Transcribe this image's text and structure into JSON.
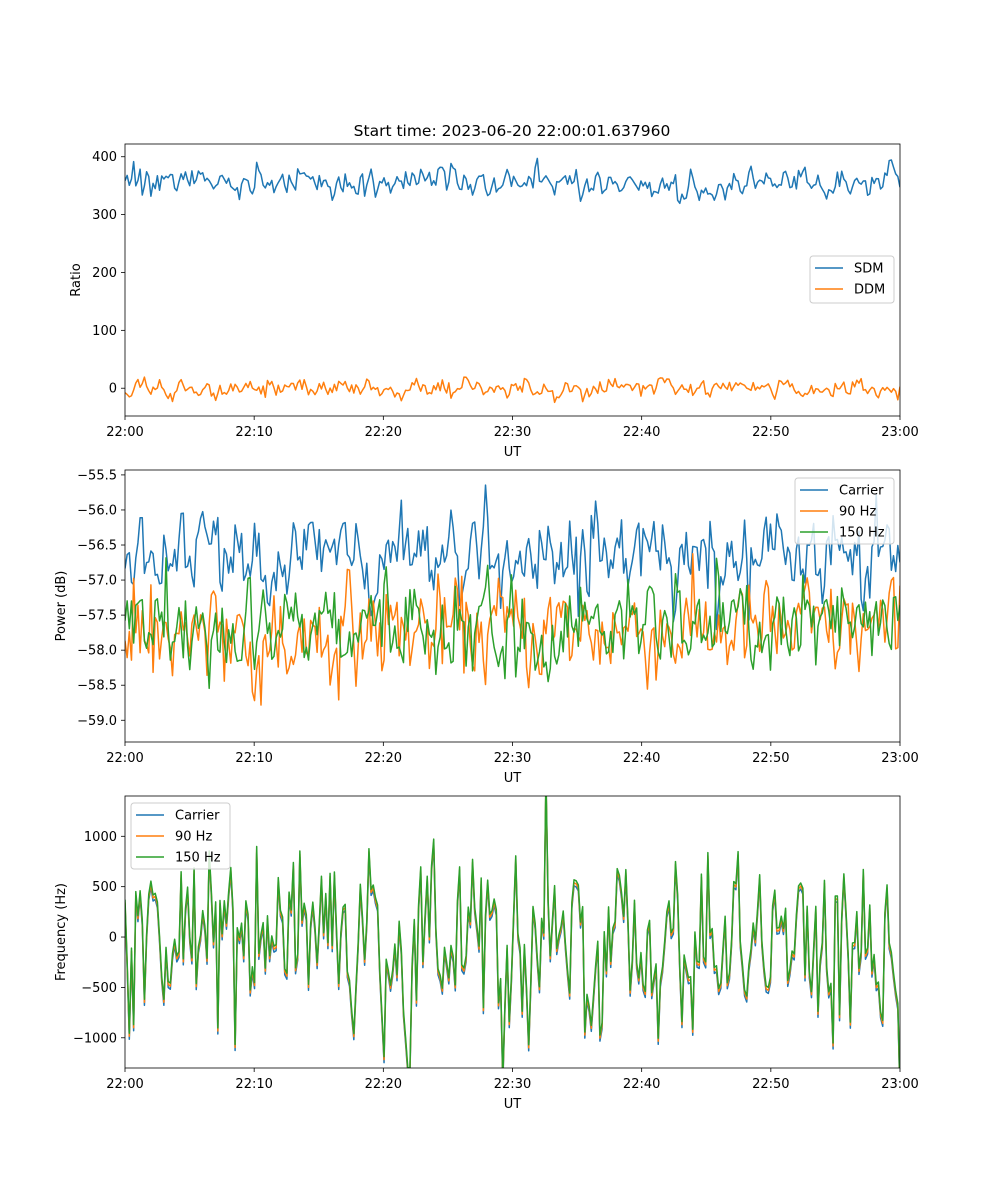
{
  "figure": {
    "title": "Start time: 2023-06-20 22:00:01.637960"
  },
  "chart_data": [
    {
      "type": "line",
      "title": "Start time: 2023-06-20 22:00:01.637960",
      "xlabel": "UT",
      "ylabel": "Ratio",
      "x_ticks": [
        "22:00",
        "22:10",
        "22:20",
        "22:30",
        "22:40",
        "22:50",
        "23:00"
      ],
      "y_ticks": [
        "0",
        "100",
        "200",
        "300",
        "400"
      ],
      "xlim": [
        "22:00",
        "23:00"
      ],
      "ylim": [
        -48,
        422
      ],
      "grid": false,
      "legend": "center-right",
      "series": [
        {
          "name": "SDM",
          "color": "#1f77b4",
          "mean": 356,
          "noise": 14,
          "bias": 0,
          "seed": 11
        },
        {
          "name": "DDM",
          "color": "#ff7f0e",
          "mean": 0,
          "noise": 9,
          "bias": 0,
          "seed": 23
        }
      ]
    },
    {
      "type": "line",
      "title": "",
      "xlabel": "UT",
      "ylabel": "Power (dB)",
      "x_ticks": [
        "22:00",
        "22:10",
        "22:20",
        "22:30",
        "22:40",
        "22:50",
        "23:00"
      ],
      "y_ticks": [
        "−59.0",
        "−58.5",
        "−58.0",
        "−57.5",
        "−57.0",
        "−56.5",
        "−56.0",
        "−55.5"
      ],
      "xlim": [
        "22:00",
        "23:00"
      ],
      "ylim": [
        -59.31,
        -55.43
      ],
      "grid": false,
      "legend": "top-right",
      "series": [
        {
          "name": "Carrier",
          "color": "#1f77b4",
          "mean": -56.65,
          "noise": 0.33,
          "bias": 0,
          "seed": 37
        },
        {
          "name": "90 Hz",
          "color": "#ff7f0e",
          "mean": -57.72,
          "noise": 0.38,
          "bias": 0,
          "seed": 41
        },
        {
          "name": "150 Hz",
          "color": "#2ca02c",
          "mean": -57.68,
          "noise": 0.36,
          "bias": 0,
          "seed": 53
        }
      ]
    },
    {
      "type": "line",
      "title": "",
      "xlabel": "UT",
      "ylabel": "Frequency (Hz)",
      "x_ticks": [
        "22:00",
        "22:10",
        "22:20",
        "22:30",
        "22:40",
        "22:50",
        "23:00"
      ],
      "y_ticks": [
        "−1000",
        "−500",
        "0",
        "500",
        "1000"
      ],
      "xlim": [
        "22:00",
        "23:00"
      ],
      "ylim": [
        -1300,
        1400
      ],
      "grid": false,
      "legend": "top-left",
      "series": [
        {
          "name": "Carrier",
          "color": "#1f77b4",
          "mean": -50,
          "noise": 520,
          "bias": -60,
          "seed": 67
        },
        {
          "name": "90 Hz",
          "color": "#ff7f0e",
          "mean": -50,
          "noise": 520,
          "bias": -30,
          "seed": 67
        },
        {
          "name": "150 Hz",
          "color": "#2ca02c",
          "mean": -50,
          "noise": 520,
          "bias": 0,
          "seed": 67
        }
      ]
    }
  ]
}
